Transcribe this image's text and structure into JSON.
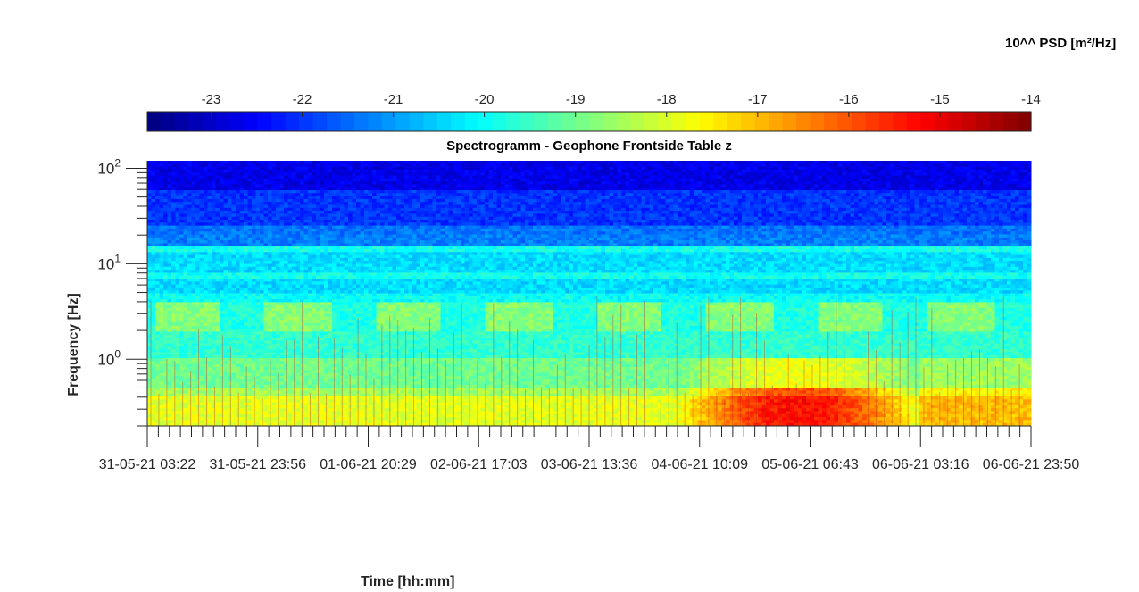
{
  "colorbar": {
    "title": "10^^ PSD [m²/Hz]",
    "range": [
      -23.7,
      -14
    ],
    "ticks": [
      -23,
      -22,
      -21,
      -20,
      -19,
      -18,
      -17,
      -16,
      -15,
      -14
    ],
    "colormap": "jet"
  },
  "chart_data": {
    "type": "heatmap",
    "title": "Spectrogramm - Geophone Frontside Table z",
    "xlabel": "Time [hh:mm]",
    "ylabel": "Frequency [Hz]",
    "y_scale": "log",
    "ylim_hz": [
      0.2,
      120
    ],
    "y_ticks": [
      {
        "base": "10",
        "exp": "0",
        "value": 1
      },
      {
        "base": "10",
        "exp": "1",
        "value": 10
      },
      {
        "base": "10",
        "exp": "2",
        "value": 100
      }
    ],
    "x_tick_labels": [
      "31-05-21 03:22",
      "31-05-21 23:56",
      "01-06-21 20:29",
      "02-06-21 17:03",
      "03-06-21 13:36",
      "04-06-21 10:09",
      "05-06-21 06:43",
      "06-06-21 03:16",
      "06-06-21 23:50"
    ],
    "psd_log10_by_band": [
      {
        "freq_hz": "80-120",
        "psd": -22.7
      },
      {
        "freq_hz": "20-80",
        "psd": -22.0
      },
      {
        "freq_hz": "6-15",
        "psd": -20.3
      },
      {
        "freq_hz": "2-5",
        "psd": -19.0
      },
      {
        "freq_hz": "0.5-1",
        "psd": -18.7
      },
      {
        "freq_hz": "0.2-0.5",
        "psd": -17.5
      }
    ],
    "peak_region": {
      "from": "04-06-21 10:09",
      "to": "06-06-21 03:16",
      "freq_hz": "0.2-0.4",
      "psd": -15.2
    }
  }
}
